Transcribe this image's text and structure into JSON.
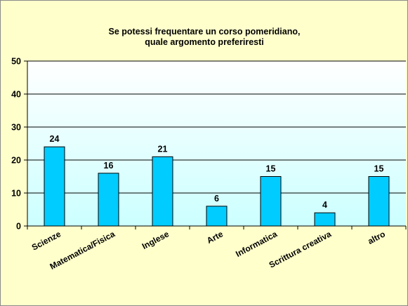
{
  "chart_data": {
    "type": "bar",
    "title_lines": [
      "Se potessi  frequentare  un corso pomeridiano,",
      "quale argomento  preferiresti"
    ],
    "categories": [
      "Scienze",
      "Matematica/Fisica",
      "Inglese",
      "Arte",
      "Informatica",
      "Scrittura creativa",
      "altro"
    ],
    "values": [
      24,
      16,
      21,
      6,
      15,
      4,
      15
    ],
    "data_labels": [
      "24",
      "16",
      "21",
      "6",
      "15",
      "4",
      "15"
    ],
    "ylim": [
      0,
      50
    ],
    "yticks": [
      0,
      10,
      20,
      30,
      40,
      50
    ],
    "ytick_labels": [
      "0",
      "10",
      "20",
      "30",
      "40",
      "50"
    ],
    "xlabel": "",
    "ylabel": "",
    "grid": true,
    "legend": "none",
    "colors": {
      "bar_fill": "#00ccff",
      "bar_stroke": "#000000",
      "background": "#ffffcc",
      "plot_gradient_top": "#ffffff",
      "plot_gradient_bottom": "#ccffff",
      "gridline": "#000000"
    }
  }
}
